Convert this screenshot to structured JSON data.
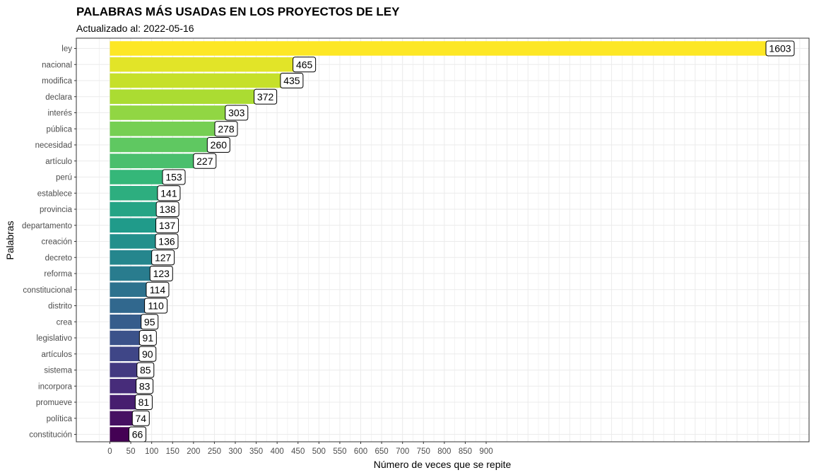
{
  "chart_data": {
    "type": "bar",
    "orientation": "horizontal",
    "title": "PALABRAS MÁS USADAS EN LOS PROYECTOS DE LEY",
    "subtitle": "Actualizado al: 2022-05-16",
    "xlabel": "Número de veces que se repite",
    "ylabel": "Palabras",
    "categories": [
      "ley",
      "nacional",
      "modifica",
      "declara",
      "interés",
      "pública",
      "necesidad",
      "artículo",
      "perú",
      "establece",
      "provincia",
      "departamento",
      "creación",
      "decreto",
      "reforma",
      "constitucional",
      "distrito",
      "crea",
      "legislativo",
      "artículos",
      "sistema",
      "incorpora",
      "promueve",
      "política",
      "constitución"
    ],
    "values": [
      1603,
      465,
      435,
      372,
      303,
      278,
      260,
      227,
      153,
      141,
      138,
      137,
      136,
      127,
      123,
      114,
      110,
      95,
      91,
      90,
      85,
      83,
      81,
      74,
      66
    ],
    "x_ticks": [
      0,
      50,
      100,
      150,
      200,
      250,
      300,
      350,
      400,
      450,
      500,
      550,
      600,
      650,
      700,
      750,
      800,
      850,
      900
    ],
    "grid": true,
    "legend": "none",
    "colors": {
      "palette": "viridis",
      "low": "#440154",
      "high": "#FDE725"
    }
  }
}
